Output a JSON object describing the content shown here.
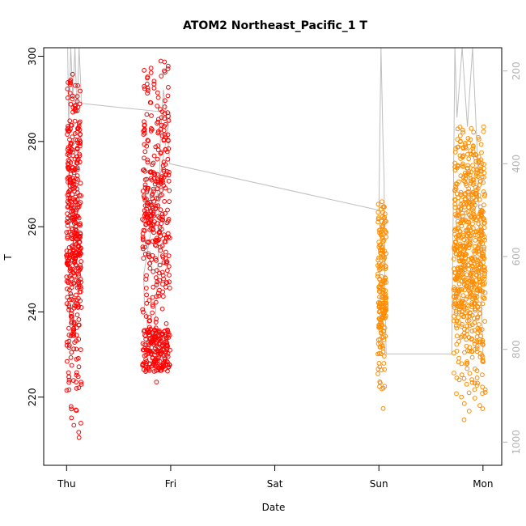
{
  "chart_data": {
    "type": "scatter",
    "title": "ATOM2 Northeast_Pacific_1 T",
    "xlabel": "Date",
    "ylabel": "T",
    "x_ticks": [
      "Thu",
      "Fri",
      "Sat",
      "Sun",
      "Mon"
    ],
    "x_tick_positions": [
      0,
      1,
      2,
      3,
      4
    ],
    "xlim": [
      -0.22,
      4.18
    ],
    "ylim": [
      204,
      302
    ],
    "y_ticks": [
      220,
      240,
      260,
      280,
      300
    ],
    "y_right_ticks": [
      200,
      400,
      600,
      800,
      1000
    ],
    "y_right_lim": [
      1050,
      150
    ],
    "y_right_reversed": true,
    "grid": false,
    "colors": {
      "series_red": "#ff0000",
      "series_orange": "#ff8c00",
      "pressure_line": "#bebebe",
      "right_axis": "#b3b3b3",
      "frame": "#000000"
    },
    "segments": [
      {
        "color": "series_red",
        "x_start": 0.0,
        "x_end": 0.14,
        "points": 420,
        "y_min": 208,
        "y_max": 297
      },
      {
        "color": "series_red",
        "x_start": 0.73,
        "x_end": 0.99,
        "points": 520,
        "y_min": 221,
        "y_max": 299,
        "dense_floor": [
          226,
          236
        ]
      },
      {
        "color": "series_orange",
        "x_start": 2.99,
        "x_end": 3.07,
        "points": 200,
        "y_min": 215,
        "y_max": 267
      },
      {
        "color": "series_orange",
        "x_start": 3.72,
        "x_end": 4.02,
        "points": 700,
        "y_min": 213,
        "y_max": 284
      }
    ],
    "pressure_trace": [
      [
        0.01,
        150
      ],
      [
        0.02,
        320
      ],
      [
        0.04,
        150
      ],
      [
        0.06,
        260
      ],
      [
        0.08,
        150
      ],
      [
        0.1,
        290
      ],
      [
        0.12,
        150
      ],
      [
        0.14,
        250
      ],
      [
        0.14,
        270
      ],
      [
        1.0,
        290
      ],
      [
        0.74,
        640
      ],
      [
        0.75,
        720
      ],
      [
        0.77,
        720
      ],
      [
        0.78,
        780
      ],
      [
        0.8,
        800
      ],
      [
        0.82,
        790
      ],
      [
        0.85,
        750
      ],
      [
        0.88,
        600
      ],
      [
        0.9,
        350
      ],
      [
        0.93,
        240
      ],
      [
        0.96,
        300
      ],
      [
        0.99,
        400
      ],
      [
        3.0,
        500
      ],
      [
        3.02,
        150
      ],
      [
        3.04,
        360
      ],
      [
        3.05,
        430
      ],
      [
        3.06,
        700
      ],
      [
        3.07,
        810
      ],
      [
        3.7,
        810
      ],
      [
        3.73,
        150
      ],
      [
        3.75,
        300
      ],
      [
        3.8,
        150
      ],
      [
        3.85,
        320
      ],
      [
        3.9,
        150
      ],
      [
        3.95,
        400
      ],
      [
        4.0,
        810
      ]
    ]
  }
}
